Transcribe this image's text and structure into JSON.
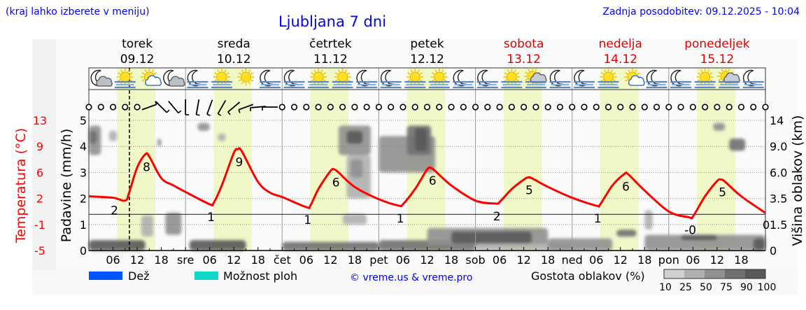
{
  "header": {
    "hint": "(kraj lahko izberete v meniju)",
    "title": "Ljubljana 7 dni",
    "updated": "Zadnja posodobitev: 09.12.2025 - 10:04"
  },
  "colors": {
    "header_text": "#0000ff",
    "temperature": "#ff0000",
    "weekend": "#e00000",
    "daylight": "#f0f8c8",
    "rain": "#0055ff",
    "showers": "#10d8c8"
  },
  "legend": {
    "rain": "Dež",
    "showers": "Možnost ploh",
    "copyright": "© vreme.us & vreme.pro",
    "cloud_density": "Gostota oblakov (%)",
    "density_levels": [
      "10",
      "25",
      "50",
      "75",
      "90",
      "100"
    ],
    "density_colors": [
      "#d0d0d0",
      "#b0b0b0",
      "#909090",
      "#707070",
      "#585858"
    ]
  },
  "chart_data": {
    "type": "line",
    "start": "09.12",
    "now": "09.12 10:04",
    "days": [
      {
        "name": "torek",
        "date": "09.12",
        "weekend": false
      },
      {
        "name": "sreda",
        "date": "10.12",
        "weekend": false
      },
      {
        "name": "četrtek",
        "date": "11.12",
        "weekend": false
      },
      {
        "name": "petek",
        "date": "12.12",
        "weekend": false
      },
      {
        "name": "sobota",
        "date": "13.12",
        "weekend": true
      },
      {
        "name": "nedelja",
        "date": "14.12",
        "weekend": true
      },
      {
        "name": "ponedeljek",
        "date": "15.12",
        "weekend": true
      }
    ],
    "x_tick_labels": [
      "06",
      "12",
      "18",
      "sre",
      "06",
      "12",
      "18",
      "čet",
      "06",
      "12",
      "18",
      "pet",
      "06",
      "12",
      "18",
      "sob",
      "06",
      "12",
      "18",
      "ned",
      "06",
      "12",
      "18",
      "pon",
      "06",
      "12",
      "18"
    ],
    "daylight": [
      "07:00",
      "16:30"
    ],
    "axes": {
      "precip": {
        "label": "Padavine (mm/h)",
        "ticks": [
          "0",
          "1",
          "2",
          "3",
          "4",
          "5"
        ],
        "range": [
          0,
          5
        ]
      },
      "temp": {
        "label": "Temperatura (°C)",
        "ticks": [
          "-5",
          "-1",
          "2",
          "6",
          "9",
          "13"
        ],
        "range": [
          -5,
          13
        ]
      },
      "cloud": {
        "label": "Višina oblakov (km)",
        "ticks": [
          "0",
          "1.5",
          "3.5",
          "6.0",
          "9.0",
          "14"
        ],
        "extra_tick": "0"
      }
    },
    "temperature": [
      [
        "09.12 00",
        2.5
      ],
      [
        "09.12 06",
        2.3
      ],
      [
        "09.12 09",
        1.9
      ],
      [
        "09.12 10",
        3.0
      ],
      [
        "09.12 12",
        6.5
      ],
      [
        "09.12 14",
        8.3
      ],
      [
        "09.12 15",
        8.0
      ],
      [
        "09.12 18",
        5.0
      ],
      [
        "09.12 21",
        4.0
      ],
      [
        "10.12 00",
        3.1
      ],
      [
        "10.12 06",
        1.4
      ],
      [
        "10.12 07",
        1.6
      ],
      [
        "10.12 09",
        4.0
      ],
      [
        "10.12 12",
        8.5
      ],
      [
        "10.12 13",
        9.0
      ],
      [
        "10.12 14",
        8.7
      ],
      [
        "10.12 18",
        4.5
      ],
      [
        "10.12 21",
        3.0
      ],
      [
        "11.12 00",
        2.4
      ],
      [
        "11.12 06",
        1.0
      ],
      [
        "11.12 07",
        1.2
      ],
      [
        "11.12 09",
        3.5
      ],
      [
        "11.12 12",
        6.0
      ],
      [
        "11.12 13",
        6.2
      ],
      [
        "11.12 14",
        5.8
      ],
      [
        "11.12 18",
        3.8
      ],
      [
        "12.12 00",
        2.1
      ],
      [
        "12.12 05",
        1.2
      ],
      [
        "12.12 06",
        1.4
      ],
      [
        "12.12 09",
        3.5
      ],
      [
        "12.12 12",
        6.2
      ],
      [
        "12.12 13",
        6.4
      ],
      [
        "12.12 14",
        6.0
      ],
      [
        "12.12 18",
        4.0
      ],
      [
        "13.12 00",
        1.9
      ],
      [
        "13.12 05",
        1.5
      ],
      [
        "13.12 06",
        1.7
      ],
      [
        "13.12 09",
        3.5
      ],
      [
        "13.12 12",
        4.8
      ],
      [
        "13.12 13",
        5.1
      ],
      [
        "13.12 14",
        5.0
      ],
      [
        "13.12 18",
        3.8
      ],
      [
        "14.12 00",
        2.3
      ],
      [
        "14.12 06",
        1.2
      ],
      [
        "14.12 07",
        1.4
      ],
      [
        "14.12 10",
        4.0
      ],
      [
        "14.12 13",
        5.6
      ],
      [
        "14.12 14",
        5.5
      ],
      [
        "14.12 18",
        3.3
      ],
      [
        "15.12 00",
        0.4
      ],
      [
        "15.12 05",
        -0.4
      ],
      [
        "15.12 06",
        -0.3
      ],
      [
        "15.12 09",
        2.5
      ],
      [
        "15.12 12",
        4.6
      ],
      [
        "15.12 13",
        4.8
      ],
      [
        "15.12 14",
        4.5
      ],
      [
        "15.12 18",
        2.5
      ],
      [
        "15.12 24",
        0.2
      ]
    ],
    "extremes": [
      {
        "t": "09.12 06",
        "label": "2"
      },
      {
        "t": "09.12 14",
        "label": "8"
      },
      {
        "t": "10.12 06",
        "label": "1"
      },
      {
        "t": "10.12 13",
        "label": "9"
      },
      {
        "t": "11.12 06",
        "label": "1"
      },
      {
        "t": "11.12 13",
        "label": "6"
      },
      {
        "t": "12.12 05",
        "label": "1"
      },
      {
        "t": "12.12 13",
        "label": "6"
      },
      {
        "t": "13.12 05",
        "label": "2"
      },
      {
        "t": "13.12 13",
        "label": "5"
      },
      {
        "t": "14.12 06",
        "label": "1"
      },
      {
        "t": "14.12 13",
        "label": "6"
      },
      {
        "t": "15.12 05",
        "label": "-0"
      },
      {
        "t": "15.12 13",
        "label": "5"
      }
    ],
    "weather_icons": [
      "moon-cloud",
      "sun-fog",
      "sun-cloud",
      "moon-cloud",
      "moon-fog",
      "sun-fog",
      "sun",
      "moon-fog",
      "moon-fog",
      "sun-fog",
      "sun-fog",
      "moon-fog",
      "moon-fog",
      "sun-fog",
      "sun-fog",
      "moon-fog",
      "moon-fog",
      "sun-fog",
      "cloud-fog",
      "moon-fog",
      "moon-fog",
      "sun-fog",
      "sun-cloud",
      "moon-fog",
      "moon-fog",
      "sun-fog",
      "cloud-fog",
      "moon-fog"
    ],
    "wind_directions": [
      null,
      null,
      null,
      null,
      null,
      250,
      315,
      320,
      0,
      10,
      20,
      30,
      50,
      70,
      85,
      90,
      null,
      null,
      null,
      null,
      null,
      null,
      null,
      null,
      null,
      null,
      null,
      null,
      null,
      null,
      null,
      null,
      null,
      null,
      null,
      null,
      null,
      null,
      null,
      null,
      null,
      null,
      null,
      null,
      null,
      null,
      null,
      null,
      null,
      null,
      null,
      null,
      null,
      null,
      null,
      null,
      null
    ],
    "clouds": [
      {
        "from": "09.12 00",
        "to": "09.12 03",
        "km": [
          8,
          13
        ],
        "density": 50
      },
      {
        "from": "09.12 00",
        "to": "09.12 02",
        "km": [
          9.5,
          12
        ],
        "density": 75
      },
      {
        "from": "09.12 05",
        "to": "09.12 07",
        "km": [
          10,
          12
        ],
        "density": 25
      },
      {
        "from": "09.12 17",
        "to": "09.12 18",
        "km": [
          9,
          10.5
        ],
        "density": 50
      },
      {
        "from": "09.12 00",
        "to": "09.12 14",
        "km": [
          0,
          0.6
        ],
        "density": 90
      },
      {
        "from": "09.12 13",
        "to": "09.12 16",
        "km": [
          0.8,
          2.2
        ],
        "density": 25
      },
      {
        "from": "09.12 19",
        "to": "09.12 23",
        "km": [
          0.9,
          2.4
        ],
        "density": 50
      },
      {
        "from": "10.12 01",
        "to": "10.12 15",
        "km": [
          0,
          0.6
        ],
        "density": 90
      },
      {
        "from": "10.12 03",
        "to": "10.12 06",
        "km": [
          12,
          13.5
        ],
        "density": 50
      },
      {
        "from": "10.12 08",
        "to": "10.12 10",
        "km": [
          10,
          11.5
        ],
        "density": 25
      },
      {
        "from": "11.12 00",
        "to": "11.12 24",
        "km": [
          0,
          0.5
        ],
        "density": 75
      },
      {
        "from": "11.12 14",
        "to": "11.12 22",
        "km": [
          8,
          13
        ],
        "density": 50
      },
      {
        "from": "11.12 16",
        "to": "11.12 20",
        "km": [
          9.5,
          12
        ],
        "density": 90
      },
      {
        "from": "11.12 16",
        "to": "11.12 22",
        "km": [
          3.5,
          8
        ],
        "density": 25
      },
      {
        "from": "11.12 17",
        "to": "11.12 20",
        "km": [
          5.5,
          7.5
        ],
        "density": 50
      },
      {
        "from": "11.12 15",
        "to": "11.12 21",
        "km": [
          1.5,
          2.3
        ],
        "density": 25
      },
      {
        "from": "12.12 00",
        "to": "12.12 14",
        "km": [
          6,
          11
        ],
        "density": 50
      },
      {
        "from": "12.12 07",
        "to": "12.12 13",
        "km": [
          8,
          13
        ],
        "density": 75
      },
      {
        "from": "12.12 09",
        "to": "12.12 12",
        "km": [
          8.5,
          12.5
        ],
        "density": 90
      },
      {
        "from": "12.12 00",
        "to": "12.12 24",
        "km": [
          0,
          0.6
        ],
        "density": 75
      },
      {
        "from": "12.12 12",
        "to": "13.12 18",
        "km": [
          0.3,
          1.3
        ],
        "density": 50
      },
      {
        "from": "12.12 18",
        "to": "13.12 14",
        "km": [
          0.4,
          1.1
        ],
        "density": 90
      },
      {
        "from": "13.12 00",
        "to": "13.12 24",
        "km": [
          0,
          0.4
        ],
        "density": 25
      },
      {
        "from": "13.12 18",
        "to": "14.12 10",
        "km": [
          0,
          0.7
        ],
        "density": 50
      },
      {
        "from": "14.12 11",
        "to": "14.12 16",
        "km": [
          0.8,
          1.2
        ],
        "density": 75
      },
      {
        "from": "14.12 18",
        "to": "14.12 20",
        "km": [
          1.2,
          2.6
        ],
        "density": 25
      },
      {
        "from": "14.12 18",
        "to": "15.12 24",
        "km": [
          0,
          0.9
        ],
        "density": 50
      },
      {
        "from": "15.12 03",
        "to": "15.12 12",
        "km": [
          0.6,
          0.9
        ],
        "density": 90
      },
      {
        "from": "15.12 21",
        "to": "15.12 24",
        "km": [
          0,
          0.7
        ],
        "density": 90
      },
      {
        "from": "15.12 11",
        "to": "15.12 14",
        "km": [
          12,
          13.5
        ],
        "density": 50
      },
      {
        "from": "15.12 15",
        "to": "15.12 19",
        "km": [
          8.5,
          10.5
        ],
        "density": 75
      }
    ]
  }
}
